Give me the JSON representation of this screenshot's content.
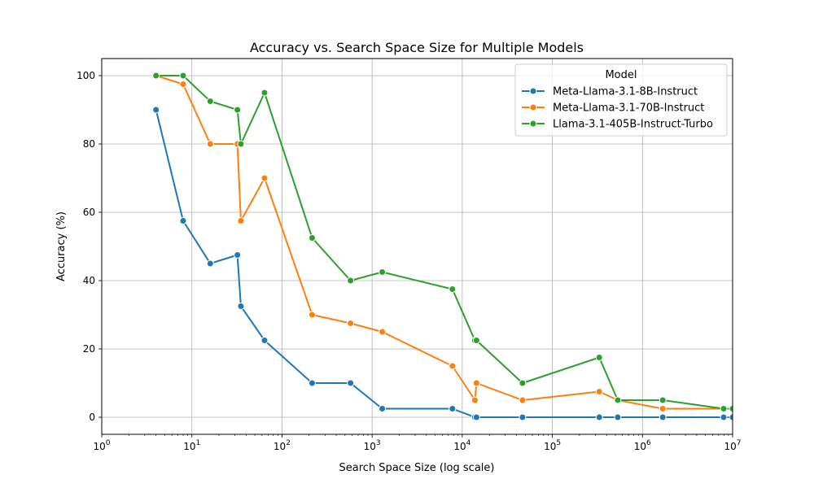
{
  "chart_data": {
    "type": "line",
    "title": "Accuracy vs. Search Space Size for Multiple Models",
    "xlabel": "Search Space Size (log scale)",
    "ylabel": "Accuracy (%)",
    "xscale": "log",
    "xlim": [
      1,
      10000000
    ],
    "ylim": [
      -5,
      105
    ],
    "grid": true,
    "x_ticks": [
      {
        "value": 1,
        "base": "10",
        "exp": "0"
      },
      {
        "value": 10,
        "base": "10",
        "exp": "1"
      },
      {
        "value": 100,
        "base": "10",
        "exp": "2"
      },
      {
        "value": 1000,
        "base": "10",
        "exp": "3"
      },
      {
        "value": 10000,
        "base": "10",
        "exp": "4"
      },
      {
        "value": 100000,
        "base": "10",
        "exp": "5"
      },
      {
        "value": 1000000,
        "base": "10",
        "exp": "6"
      },
      {
        "value": 10000000,
        "base": "10",
        "exp": "7"
      }
    ],
    "y_ticks": [
      0,
      20,
      40,
      60,
      80,
      100
    ],
    "legend": {
      "title": "Model",
      "placement": "top-right"
    },
    "series": [
      {
        "name": "Meta-Llama-3.1-8B-Instruct",
        "color": "#1f77b4",
        "x": [
          4,
          8,
          16,
          32,
          35,
          64,
          216,
          576,
          1296,
          7776,
          13824,
          14400,
          46656,
          331776,
          531441,
          1679616,
          7962624,
          10000000
        ],
        "y": [
          90,
          57.5,
          45,
          47.5,
          32.5,
          22.5,
          10,
          10,
          2.5,
          2.5,
          0,
          0,
          0,
          0,
          0,
          0,
          0,
          0
        ]
      },
      {
        "name": "Meta-Llama-3.1-70B-Instruct",
        "color": "#ff7f0e",
        "x": [
          4,
          8,
          16,
          32,
          35,
          64,
          216,
          576,
          1296,
          7776,
          13824,
          14400,
          46656,
          331776,
          531441,
          1679616,
          7962624,
          10000000
        ],
        "y": [
          100,
          97.5,
          80,
          80,
          57.5,
          70,
          30,
          27.5,
          25,
          15,
          5,
          10,
          5,
          7.5,
          5,
          2.5,
          2.5,
          2.5
        ]
      },
      {
        "name": "Llama-3.1-405B-Instruct-Turbo",
        "color": "#2ca02c",
        "x": [
          4,
          8,
          16,
          32,
          35,
          64,
          216,
          576,
          1296,
          7776,
          13824,
          14400,
          46656,
          331776,
          531441,
          1679616,
          7962624,
          10000000
        ],
        "y": [
          100,
          100,
          92.5,
          90,
          80,
          95,
          52.5,
          40,
          42.5,
          37.5,
          22.5,
          22.5,
          10,
          17.5,
          5,
          5,
          2.5,
          2.5
        ]
      }
    ]
  }
}
